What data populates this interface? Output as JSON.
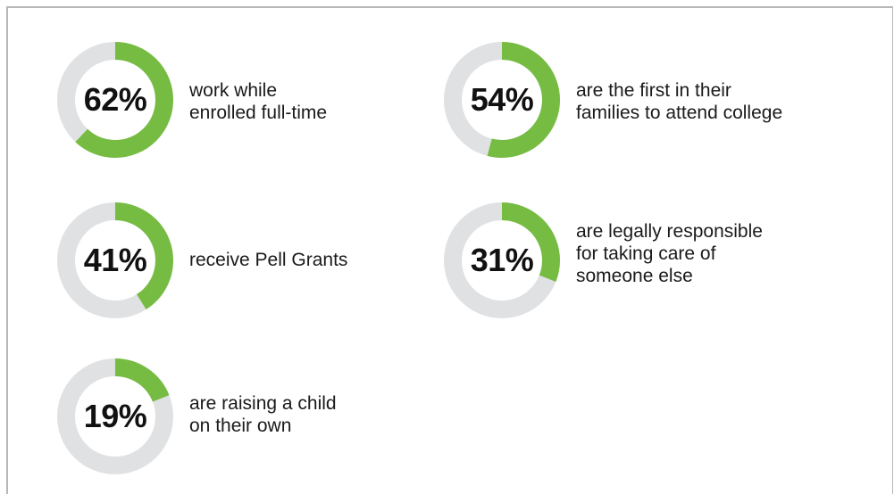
{
  "colors": {
    "accent": "#76bc43",
    "track": "#e0e1e3",
    "text": "#1a1a1a",
    "border": "#b7b7b7"
  },
  "chart_data": [
    {
      "type": "pie",
      "value": 62,
      "label": "62%",
      "description": [
        "work while",
        "enrolled full-time"
      ]
    },
    {
      "type": "pie",
      "value": 54,
      "label": "54%",
      "description": [
        "are the first in their",
        "families to attend college"
      ]
    },
    {
      "type": "pie",
      "value": 41,
      "label": "41%",
      "description": [
        "receive Pell Grants"
      ]
    },
    {
      "type": "pie",
      "value": 31,
      "label": "31%",
      "description": [
        "are legally responsible",
        "for taking care of",
        "someone else"
      ]
    },
    {
      "type": "pie",
      "value": 19,
      "label": "19%",
      "description": [
        "are raising a child",
        "on their own"
      ]
    }
  ]
}
